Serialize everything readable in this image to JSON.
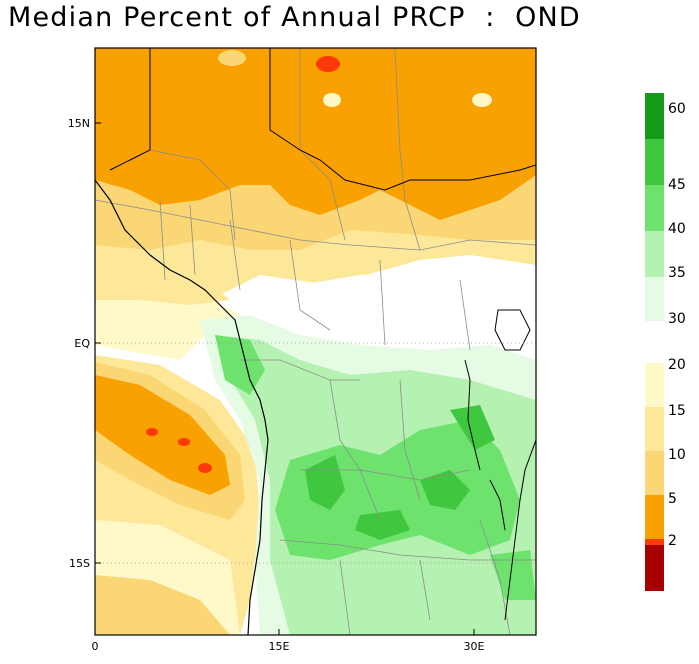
{
  "title": "Median Percent of Annual PRCP  :  OND",
  "map": {
    "x_ticks": [
      "0",
      "15E",
      "30E"
    ],
    "y_ticks": [
      "15N",
      "EQ",
      "15S"
    ]
  },
  "colorbar": {
    "labels": [
      "60",
      "45",
      "40",
      "35",
      "30",
      "20",
      "15",
      "10",
      "5",
      "2"
    ],
    "colors": {
      "dark_green": "#159a1a",
      "green": "#3fc73f",
      "mid_green": "#6de36d",
      "light_green": "#b5f1b1",
      "pale_green": "#e6fbe4",
      "pale_yellow": "#fff8c8",
      "light_yellow": "#fde89a",
      "yellow": "#fad774",
      "orange": "#f9a100",
      "red_orange": "#ff3a0a",
      "dark_red": "#a80000"
    }
  }
}
